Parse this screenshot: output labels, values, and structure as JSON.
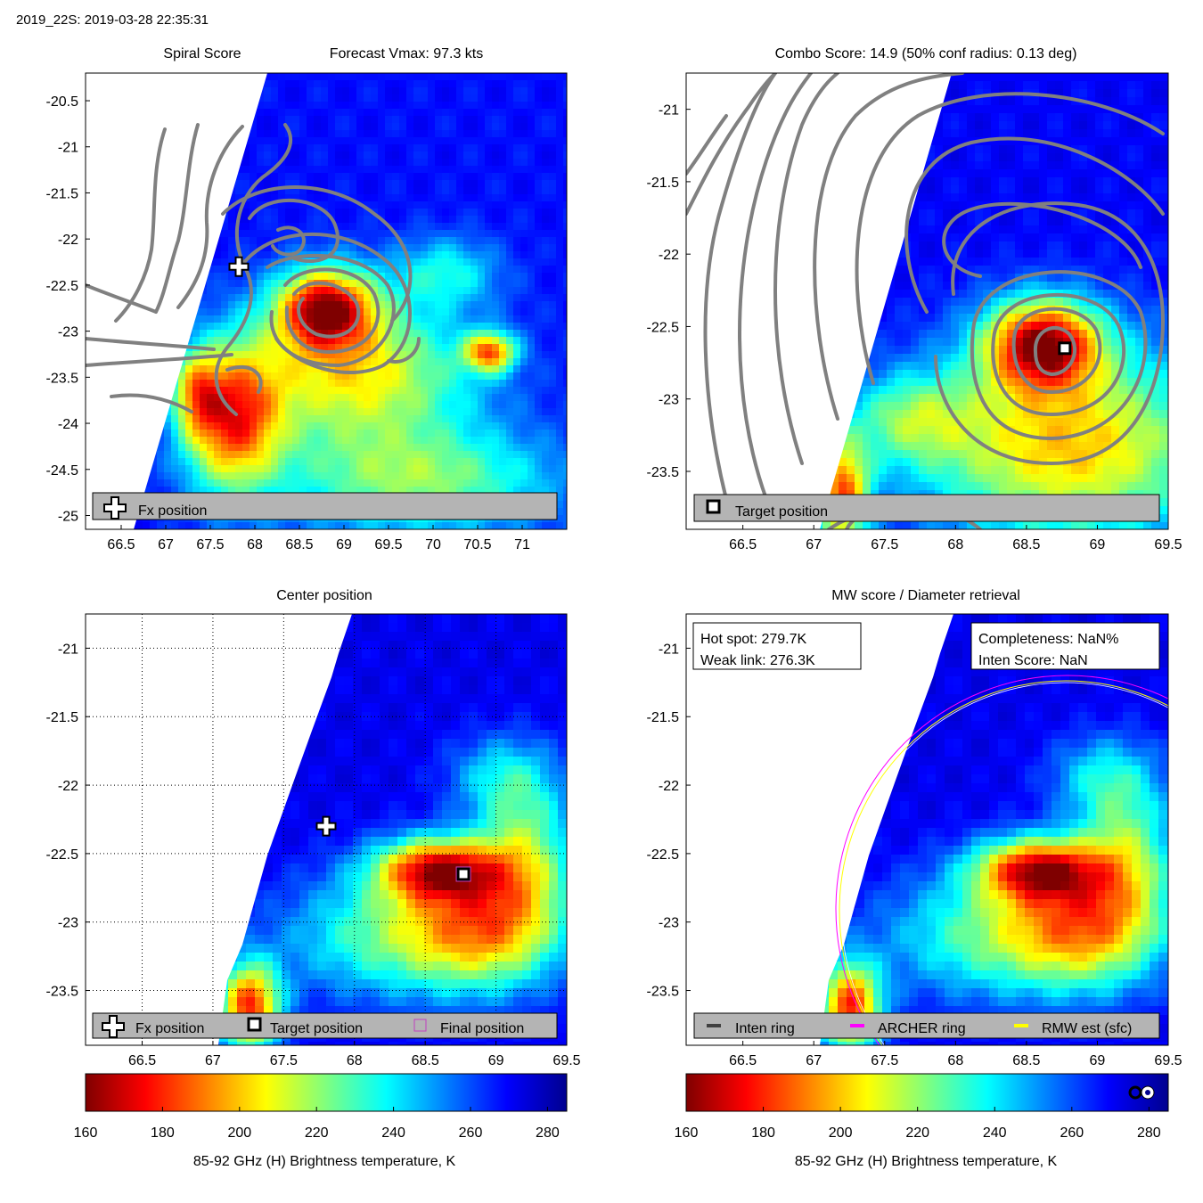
{
  "header": {
    "text": "2019_22S: 2019-03-28 22:35:31"
  },
  "colors": {
    "jet": [
      "#7f0000",
      "#ff0000",
      "#ff7f00",
      "#ffff00",
      "#7fff7f",
      "#00ffff",
      "#007fff",
      "#0000ff",
      "#00008f"
    ],
    "contour": "#808080",
    "legend_bg": "#b4b4b4",
    "archer_ring": "#ff00ff",
    "rmw_ring": "#ffff00",
    "inten_ring": "#404040",
    "final_marker": "#c040c0"
  },
  "chart_data": [
    {
      "id": "spiral",
      "type": "heatmap",
      "title_left": "Spiral Score",
      "title_right": "Forecast Vmax: 97.3 kts",
      "xlim": [
        66.1,
        71.5
      ],
      "ylim": [
        -25.15,
        -20.2
      ],
      "xticks": [
        "66.5",
        "67",
        "67.5",
        "68",
        "68.5",
        "69",
        "69.5",
        "70",
        "70.5",
        "71"
      ],
      "yticks": [
        "-20.5",
        "-21",
        "-21.5",
        "-22",
        "-22.5",
        "-23",
        "-23.5",
        "-24",
        "-24.5",
        "-25"
      ],
      "swath_edge": [
        [
          66.65,
          -25.15
        ],
        [
          68.2,
          -20.2
        ]
      ],
      "markers": [
        {
          "kind": "fx-position",
          "x": 67.82,
          "y": -22.3
        }
      ],
      "legend": [
        "Fx position"
      ],
      "grid": false
    },
    {
      "id": "combo",
      "type": "heatmap",
      "title": "Combo Score: 14.9  (50% conf radius: 0.13 deg)",
      "xlim": [
        66.1,
        69.5
      ],
      "ylim": [
        -23.9,
        -20.75
      ],
      "xticks": [
        "66.5",
        "67",
        "67.5",
        "68",
        "68.5",
        "69",
        "69.5"
      ],
      "yticks": [
        "-21",
        "-21.5",
        "-22",
        "-22.5",
        "-23",
        "-23.5"
      ],
      "swath_edge": [
        [
          67.0,
          -23.9
        ],
        [
          68.08,
          -20.75
        ]
      ],
      "markers": [
        {
          "kind": "target-position",
          "x": 68.77,
          "y": -22.65
        }
      ],
      "legend": [
        "Target position"
      ],
      "grid": false
    },
    {
      "id": "center",
      "type": "heatmap",
      "title": "Center position",
      "xlim": [
        66.1,
        69.5
      ],
      "ylim": [
        -23.9,
        -20.75
      ],
      "xticks": [
        "66.5",
        "67",
        "67.5",
        "68",
        "68.5",
        "69",
        "69.5"
      ],
      "yticks": [
        "-21",
        "-21.5",
        "-22",
        "-22.5",
        "-23",
        "-23.5"
      ],
      "swath_edge": [
        [
          66.95,
          -23.9
        ],
        [
          67.98,
          -20.75
        ]
      ],
      "markers": [
        {
          "kind": "fx-position",
          "x": 67.8,
          "y": -22.3
        },
        {
          "kind": "target-position",
          "x": 68.77,
          "y": -22.65
        },
        {
          "kind": "final-position",
          "x": 68.77,
          "y": -22.65
        }
      ],
      "legend": [
        "Fx position",
        "Target position",
        "Final position"
      ],
      "grid": true
    },
    {
      "id": "mw",
      "type": "heatmap",
      "title": "MW score / Diameter retrieval",
      "xlim": [
        66.1,
        69.5
      ],
      "ylim": [
        -23.9,
        -20.75
      ],
      "xticks": [
        "66.5",
        "67",
        "67.5",
        "68",
        "68.5",
        "69",
        "69.5"
      ],
      "yticks": [
        "-21",
        "-21.5",
        "-22",
        "-22.5",
        "-23",
        "-23.5"
      ],
      "swath_edge": [
        [
          66.95,
          -23.9
        ],
        [
          67.98,
          -20.75
        ]
      ],
      "info_left": [
        "Hot spot: 279.7K",
        "Weak link: 276.3K"
      ],
      "info_right": [
        "Completeness: NaN%",
        "Inten Score: NaN"
      ],
      "legend": [
        "Inten ring",
        "ARCHER ring",
        "RMW est (sfc)"
      ],
      "grid": false
    }
  ],
  "colorbar": {
    "min": 160,
    "max": 285,
    "ticks": [
      "160",
      "180",
      "200",
      "220",
      "240",
      "260",
      "280"
    ],
    "label": "85-92 GHz (H) Brightness temperature, K"
  }
}
